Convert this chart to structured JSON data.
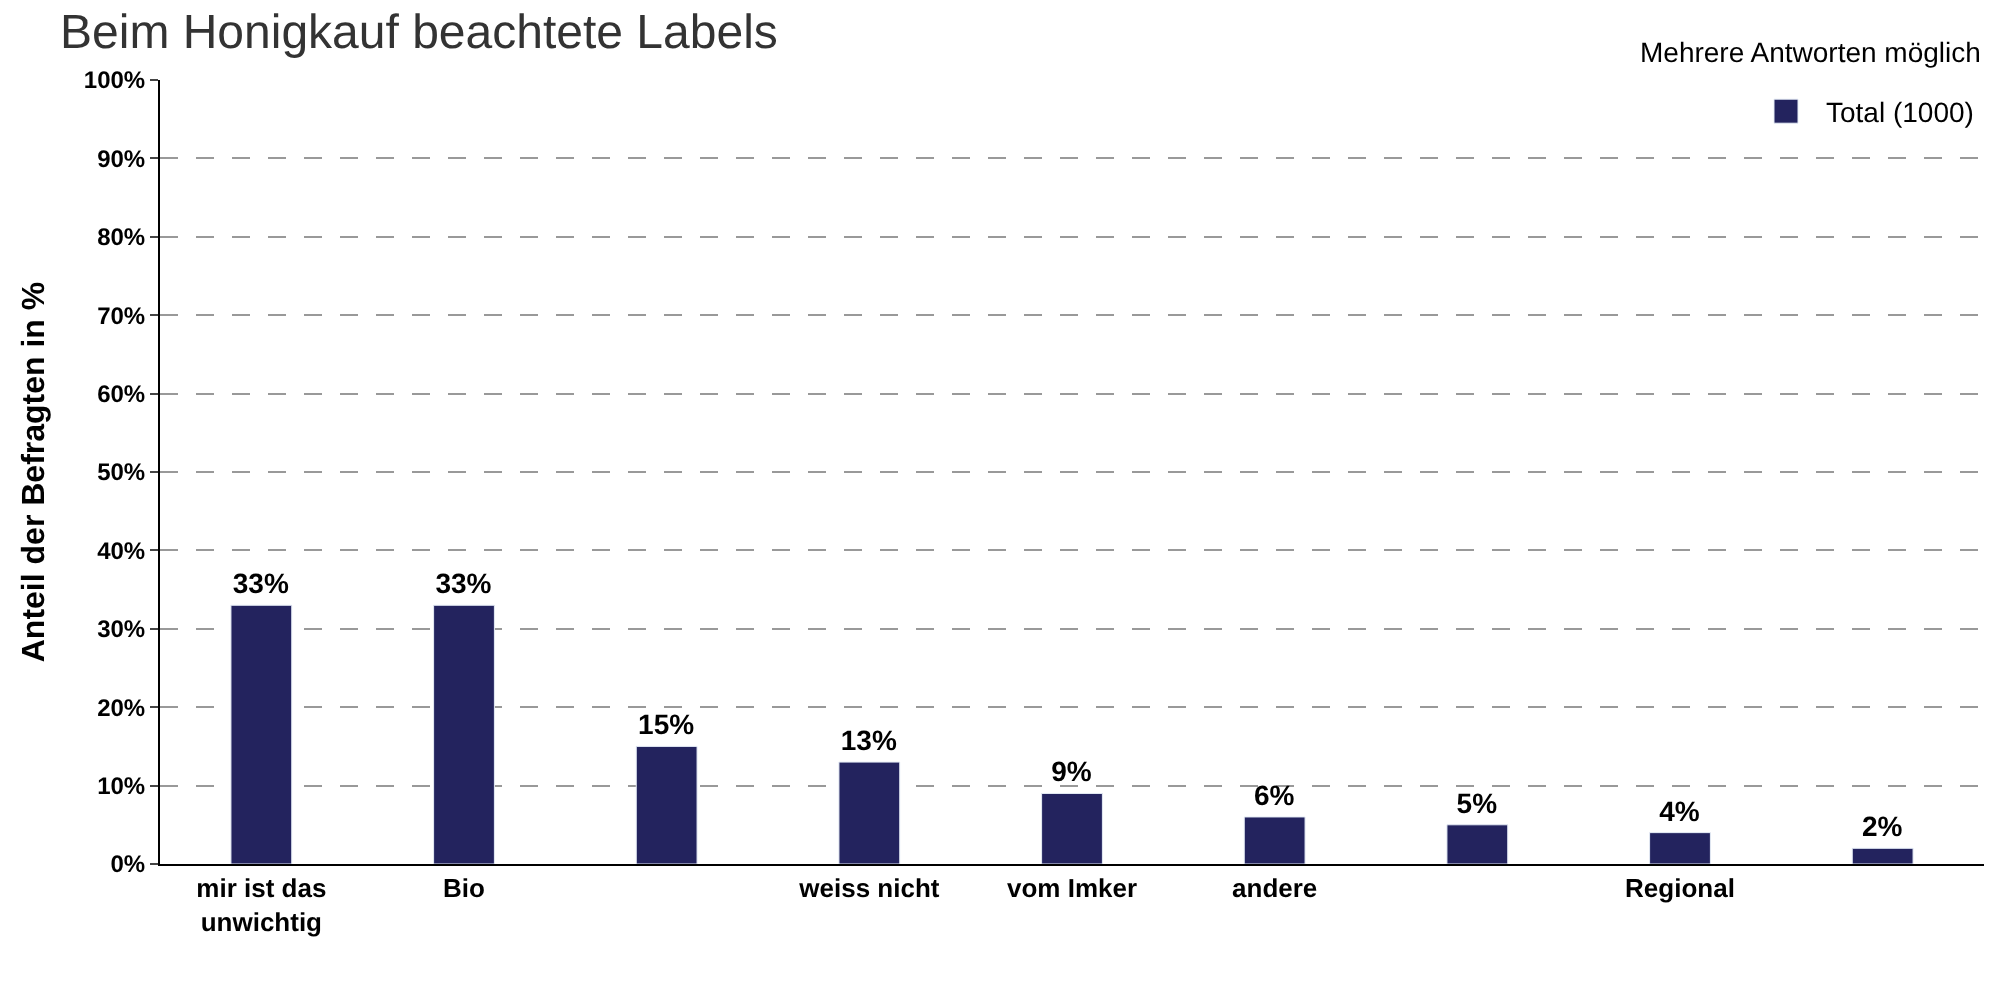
{
  "chart_data": {
    "type": "bar",
    "title": "Beim Honigkauf beachtete Labels",
    "annotations": [
      "Mehrere Antworten möglich"
    ],
    "ylabel": "Anteil der Befragten in %",
    "categories": [
      "mir ist das unwichtig",
      "Bio",
      null,
      "weiss nicht",
      "vom Imker",
      "andere",
      null,
      "Regional",
      null
    ],
    "series": [
      {
        "name": "Total (1000)",
        "color": "#23235e",
        "values": [
          33,
          33,
          15,
          13,
          9,
          6,
          5,
          4,
          2
        ]
      }
    ],
    "value_labels": [
      "33%",
      "33%",
      "15%",
      "13%",
      "9%",
      "6%",
      "5%",
      "4%",
      "2%"
    ],
    "ylim": [
      0,
      100
    ],
    "yticks": [
      {
        "value": 0,
        "label": "0%"
      },
      {
        "value": 10,
        "label": "10%"
      },
      {
        "value": 20,
        "label": "20%"
      },
      {
        "value": 30,
        "label": "30%"
      },
      {
        "value": 40,
        "label": "40%"
      },
      {
        "value": 50,
        "label": "50%"
      },
      {
        "value": 60,
        "label": "60%"
      },
      {
        "value": 70,
        "label": "70%"
      },
      {
        "value": 80,
        "label": "80%"
      },
      {
        "value": 90,
        "label": "90%"
      },
      {
        "value": 100,
        "label": "100%"
      }
    ],
    "grid": "y",
    "legend": "top right"
  }
}
